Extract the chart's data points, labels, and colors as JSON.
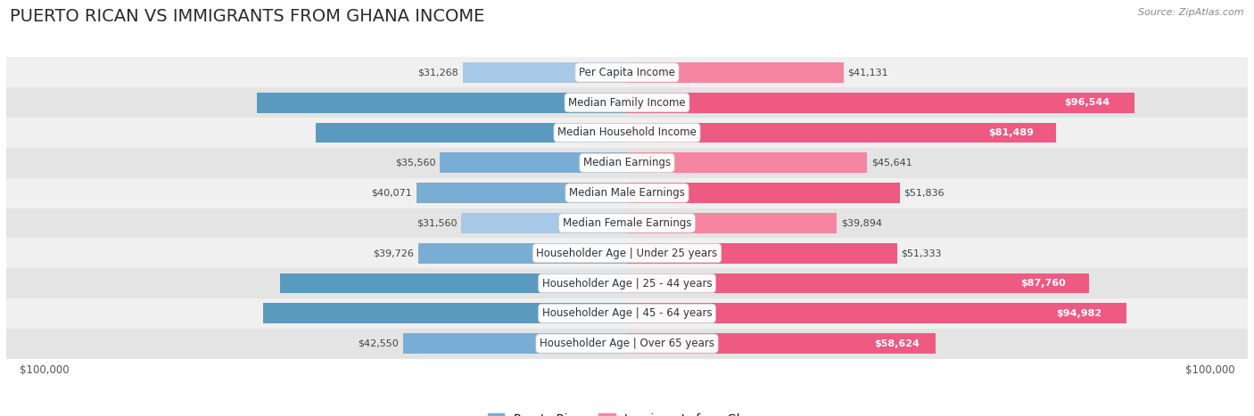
{
  "title": "PUERTO RICAN VS IMMIGRANTS FROM GHANA INCOME",
  "source": "Source: ZipAtlas.com",
  "categories": [
    "Per Capita Income",
    "Median Family Income",
    "Median Household Income",
    "Median Earnings",
    "Median Male Earnings",
    "Median Female Earnings",
    "Householder Age | Under 25 years",
    "Householder Age | 25 - 44 years",
    "Householder Age | 45 - 64 years",
    "Householder Age | Over 65 years"
  ],
  "puerto_rican": [
    31268,
    70423,
    59197,
    35560,
    40071,
    31560,
    39726,
    65996,
    69234,
    42550
  ],
  "ghana": [
    41131,
    96544,
    81489,
    45641,
    51836,
    39894,
    51333,
    87760,
    94982,
    58624
  ],
  "max_val": 100000,
  "blue_light": "#a8c8e8",
  "blue_mid": "#7aadd4",
  "blue_dark": "#5b9abf",
  "pink_light": "#f7b8ca",
  "pink_mid": "#f585a0",
  "pink_dark": "#ee5a82",
  "label_blue": "Puerto Rican",
  "label_pink": "Immigrants from Ghana",
  "row_colors": [
    "#f0f0f0",
    "#e4e4e4"
  ],
  "title_fontsize": 14,
  "source_fontsize": 8,
  "bar_height": 0.68,
  "value_fontsize": 8,
  "cat_fontsize": 8.5,
  "inside_label_threshold": 0.52
}
